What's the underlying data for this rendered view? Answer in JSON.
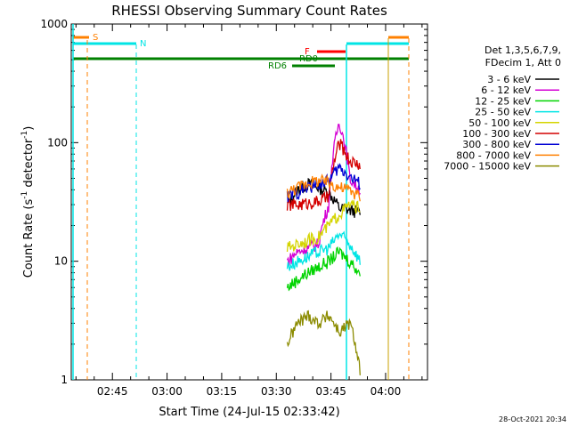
{
  "chart_data": {
    "type": "line",
    "title": "RHESSI Observing Summary Count Rates",
    "xlabel": "Start Time (24-Jul-15 02:33:42)",
    "ylabel_main": "Count Rate (s",
    "ylabel_sup1": "-1",
    "ylabel_mid": " detector",
    "ylabel_sup2": "-1",
    "ylabel_end": ")",
    "y_scale": "log",
    "ylim": [
      1,
      1000
    ],
    "xlim": [
      "02:33:42",
      "04:11:30"
    ],
    "x_ticks": [
      "02:45",
      "03:00",
      "03:15",
      "03:30",
      "03:45",
      "04:00"
    ],
    "y_ticks": [
      "1",
      "10",
      "100",
      "1000"
    ],
    "legend_header": [
      "Det 1,3,5,6,7,9,",
      "FDecim 1, Att 0"
    ],
    "legend_position": "right",
    "series": [
      {
        "name": "3 - 6 keV",
        "color": "#000000",
        "start": "03:33",
        "end": "03:53",
        "values": [
          30,
          40,
          45,
          42,
          38,
          28,
          27,
          26
        ]
      },
      {
        "name": "6 - 12 keV",
        "color": "#d400d4",
        "start": "03:33",
        "end": "03:53",
        "values": [
          10,
          12,
          13,
          14,
          30,
          150,
          50,
          40
        ]
      },
      {
        "name": "12 - 25 keV",
        "color": "#00d400",
        "start": "03:33",
        "end": "03:53",
        "values": [
          6,
          7,
          8,
          9,
          10,
          12,
          10,
          8
        ]
      },
      {
        "name": "25 - 50 keV",
        "color": "#00e5e5",
        "start": "03:33",
        "end": "03:53",
        "values": [
          9,
          10,
          11,
          12,
          13,
          17,
          14,
          10
        ]
      },
      {
        "name": "50 - 100 keV",
        "color": "#d4d400",
        "start": "03:33",
        "end": "03:53",
        "values": [
          13,
          14,
          15,
          16,
          20,
          25,
          30,
          28
        ]
      },
      {
        "name": "100 - 300 keV",
        "color": "#d40000",
        "start": "03:33",
        "end": "03:53",
        "values": [
          30,
          30,
          31,
          32,
          35,
          100,
          70,
          65
        ]
      },
      {
        "name": "300 - 800 keV",
        "color": "#0000d4",
        "start": "03:33",
        "end": "03:53",
        "values": [
          35,
          38,
          42,
          45,
          48,
          62,
          52,
          45
        ]
      },
      {
        "name": "800 - 7000 keV",
        "color": "#ff8000",
        "start": "03:33",
        "end": "03:53",
        "values": [
          38,
          42,
          46,
          48,
          46,
          42,
          40,
          35
        ]
      },
      {
        "name": "7000 - 15000 keV",
        "color": "#8b8b00",
        "start": "03:33",
        "end": "03:53",
        "values": [
          2,
          3,
          3.5,
          3,
          3.5,
          2.5,
          3,
          1.2
        ]
      }
    ],
    "flags": {
      "S": {
        "label": "S",
        "color": "#ff8000"
      },
      "N": {
        "label": "N",
        "color": "#00e5e5"
      },
      "F": {
        "label": "F",
        "color": "#ff0000"
      },
      "RD0": {
        "label": "RD0",
        "color": "#008000"
      },
      "RD6": {
        "label": "RD6",
        "color": "#008000"
      }
    },
    "timestamp": "28-Oct-2021 20:34"
  }
}
